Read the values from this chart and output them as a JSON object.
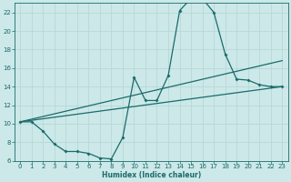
{
  "xlabel": "Humidex (Indice chaleur)",
  "bg_color": "#cce8e8",
  "line_color": "#1a6b6b",
  "grid_color": "#b8d8d8",
  "xlim": [
    -0.5,
    23.5
  ],
  "ylim": [
    6,
    23
  ],
  "yticks": [
    6,
    8,
    10,
    12,
    14,
    16,
    18,
    20,
    22
  ],
  "xticks": [
    0,
    1,
    2,
    3,
    4,
    5,
    6,
    7,
    8,
    9,
    10,
    11,
    12,
    13,
    14,
    15,
    16,
    17,
    18,
    19,
    20,
    21,
    22,
    23
  ],
  "line1_x": [
    0,
    1,
    2,
    3,
    4,
    5,
    6,
    7,
    8,
    9,
    10,
    11,
    12,
    13,
    14,
    15,
    16,
    17,
    18,
    19,
    20,
    21,
    22,
    23
  ],
  "line1_y": [
    10.2,
    10.2,
    9.2,
    7.8,
    7.0,
    7.0,
    6.8,
    6.3,
    6.2,
    8.5,
    15.0,
    12.5,
    12.5,
    15.2,
    22.2,
    23.5,
    23.5,
    22.0,
    17.5,
    14.8,
    14.7,
    14.2,
    14.0,
    14.0
  ],
  "line2_x": [
    0,
    23
  ],
  "line2_y": [
    10.2,
    16.8
  ],
  "line3_x": [
    0,
    23
  ],
  "line3_y": [
    10.2,
    14.0
  ]
}
